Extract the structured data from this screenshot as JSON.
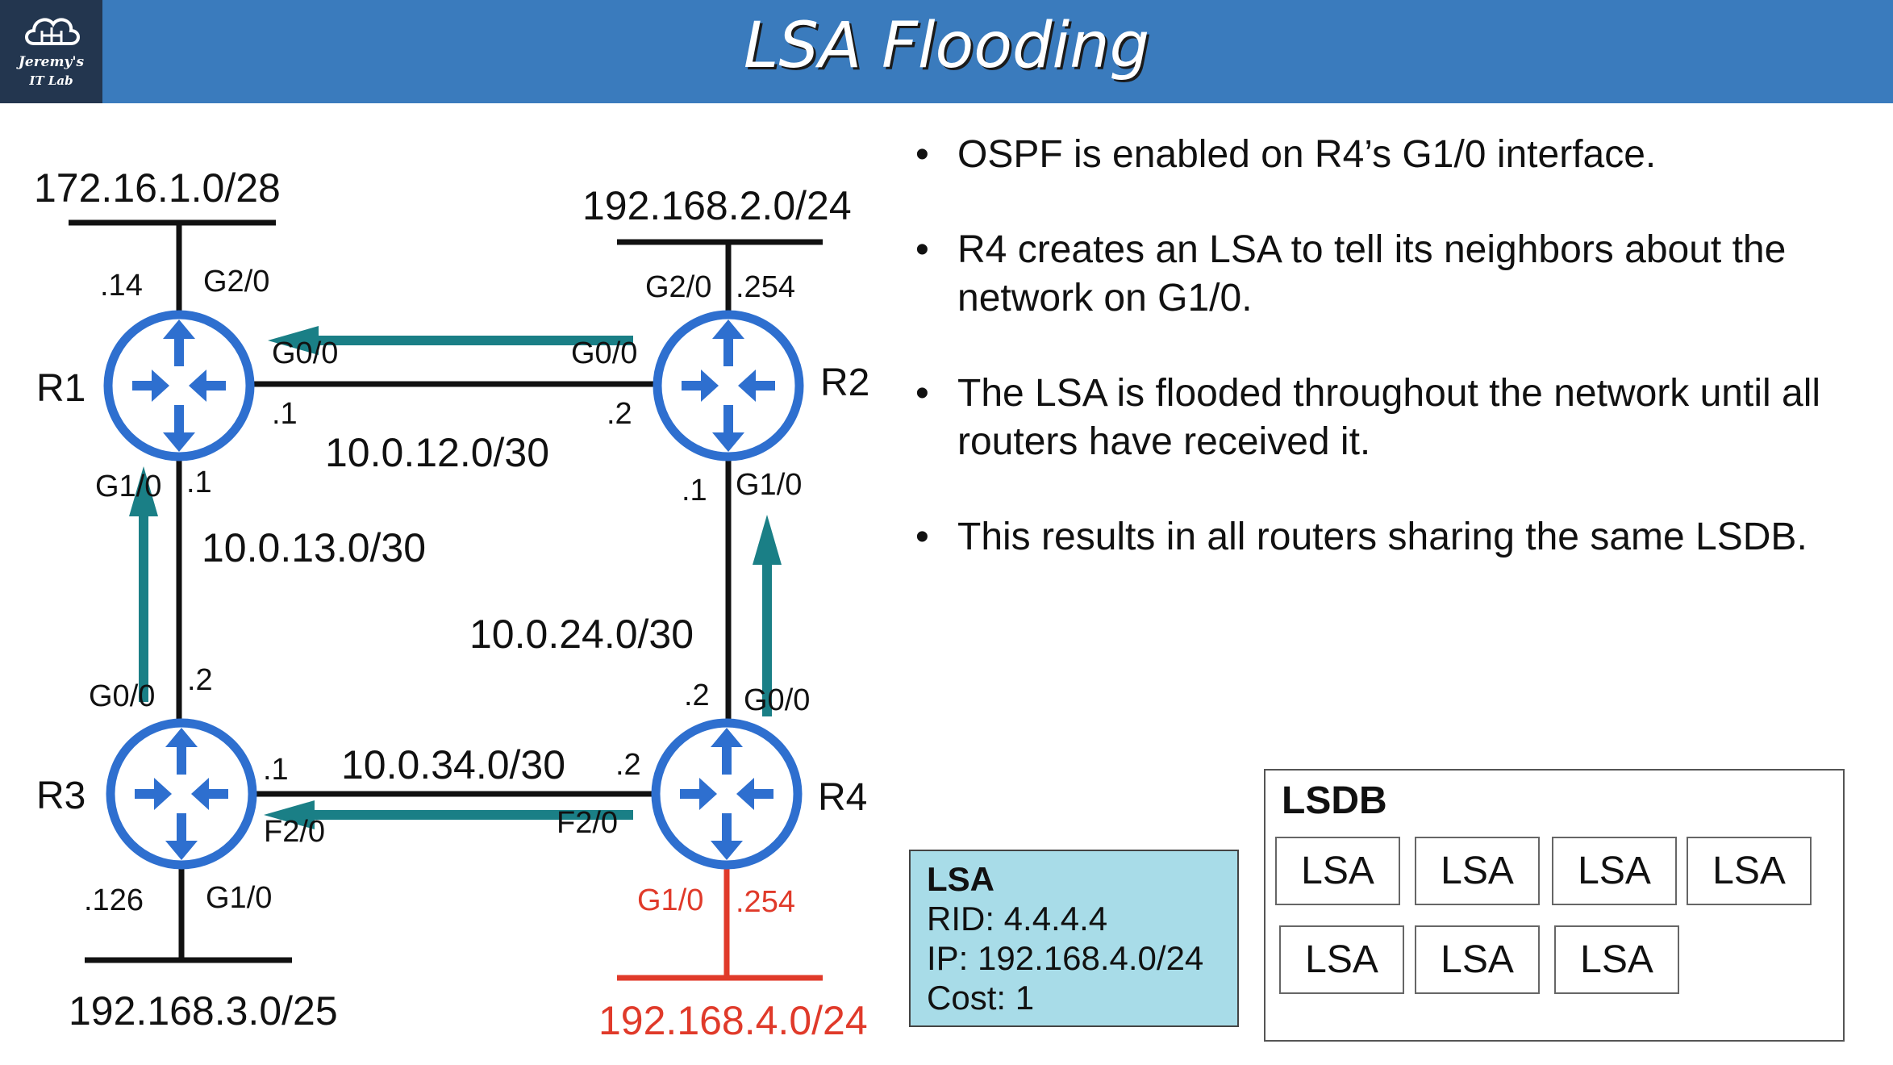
{
  "header": {
    "title": "LSA Flooding",
    "logo_line1": "Jeremy's",
    "logo_line2": "IT Lab"
  },
  "routers": {
    "r1": "R1",
    "r2": "R2",
    "r3": "R3",
    "r4": "R4"
  },
  "networks": {
    "r1_lan": "172.16.1.0/28",
    "r2_lan": "192.168.2.0/24",
    "r3_lan": "192.168.3.0/25",
    "r4_lan": "192.168.4.0/24",
    "link_12": "10.0.12.0/30",
    "link_13": "10.0.13.0/30",
    "link_24": "10.0.24.0/30",
    "link_34": "10.0.34.0/30"
  },
  "interfaces": {
    "r1_g20": "G2/0",
    "r1_g20_ip": ".14",
    "r1_g00": "G0/0",
    "r1_g00_ip": ".1",
    "r1_g10": "G1/0",
    "r1_g10_ip": ".1",
    "r2_g20": "G2/0",
    "r2_g20_ip": ".254",
    "r2_g00": "G0/0",
    "r2_g00_ip": ".2",
    "r2_g10": "G1/0",
    "r2_g10_ip": ".1",
    "r3_g00": "G0/0",
    "r3_g00_ip": ".2",
    "r3_f20": "F2/0",
    "r3_f20_ip": ".1",
    "r3_g10": "G1/0",
    "r3_g10_ip": ".126",
    "r4_g00": "G0/0",
    "r4_g00_ip": ".2",
    "r4_f20": "F2/0",
    "r4_f20_ip": ".2",
    "r4_g10": "G1/0",
    "r4_g10_ip": ".254"
  },
  "bullets": [
    "OSPF is enabled on R4’s G1/0 interface.",
    "R4 creates an LSA to tell its neighbors about the network on G1/0.",
    "The LSA is flooded throughout the network until all routers have received it.",
    "This results in all routers sharing the same LSDB."
  ],
  "bullet_char": "•",
  "lsa": {
    "title": "LSA",
    "rid": "RID: 4.4.4.4",
    "ip": "IP: 192.168.4.0/24",
    "cost": "Cost: 1"
  },
  "lsdb": {
    "title": "LSDB",
    "entries": [
      "LSA",
      "LSA",
      "LSA",
      "LSA",
      "LSA",
      "LSA",
      "LSA"
    ]
  },
  "colors": {
    "header_bg": "#3a7bbd",
    "router_blue": "#2e6fcf",
    "arrow_teal": "#1a7f86",
    "highlight_red": "#e03a2a",
    "lsa_box_bg": "#a8dce8"
  },
  "icons": {
    "router": "router-icon",
    "logo": "cloud-circuit-icon",
    "flood_arrow": "arrow-icon"
  }
}
